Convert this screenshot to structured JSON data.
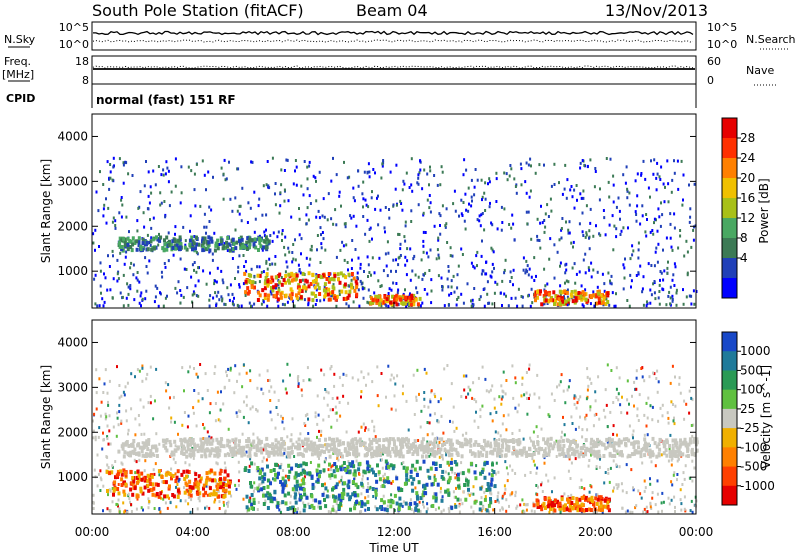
{
  "header": {
    "station": "South Pole Station (fitACF)",
    "beam": "Beam 04",
    "date": "13/Nov/2013"
  },
  "top_panels": {
    "nsky_label": "N.Sky",
    "nsky_ticks": [
      "10^5",
      "10^0"
    ],
    "nsearch_label": "N.Search",
    "nsearch_ticks": [
      "10^5",
      "10^0"
    ],
    "freq_label_1": "Freq.",
    "freq_label_2": "[MHz]",
    "freq_ticks": [
      "18",
      "8"
    ],
    "nave_label": "Nave",
    "nave_ticks": [
      "60",
      "0"
    ],
    "cpid_label": "CPID",
    "cpid_value": "normal (fast) 151 RF"
  },
  "chart_data": [
    {
      "type": "heatmap",
      "panel": "power",
      "ylabel": "Slant Range [km]",
      "y_ticks": [
        "1000",
        "2000",
        "3000",
        "4000"
      ],
      "ylim": [
        180,
        4500
      ],
      "xlim": [
        0,
        24
      ],
      "colorbar": {
        "label": "Power [dB]",
        "ticks": [
          "4",
          "8",
          "12",
          "16",
          "20",
          "24",
          "28"
        ],
        "colors": [
          "#0000ff",
          "#2040b8",
          "#3c7a55",
          "#49a862",
          "#a8c018",
          "#f0c000",
          "#ff8000",
          "#ff3000",
          "#e60000"
        ]
      },
      "bands": [
        {
          "t0": 1.0,
          "t1": 7.0,
          "r0": 1500,
          "r1": 1800,
          "level": "low"
        },
        {
          "t0": 6.0,
          "t1": 10.5,
          "r0": 400,
          "r1": 1000,
          "level": "high"
        },
        {
          "t0": 11.0,
          "t1": 13.0,
          "r0": 300,
          "r1": 500,
          "level": "high"
        },
        {
          "t0": 17.5,
          "t1": 20.5,
          "r0": 300,
          "r1": 600,
          "level": "high"
        }
      ]
    },
    {
      "type": "heatmap",
      "panel": "velocity",
      "ylabel": "Slant Range [km]",
      "y_ticks": [
        "1000",
        "2000",
        "3000",
        "4000"
      ],
      "ylim": [
        180,
        4500
      ],
      "xlim": [
        0,
        24
      ],
      "colorbar": {
        "label": "Velocity [m s^-1]",
        "ticks": [
          "1000",
          "500",
          "100",
          "25",
          "-25",
          "-100",
          "-500",
          "-1000"
        ],
        "colors": [
          "#1848c8",
          "#1f7a9a",
          "#2a9a55",
          "#60c040",
          "#c8c8c0",
          "#f0b000",
          "#ff8000",
          "#ff4000",
          "#e60000"
        ]
      },
      "bands": [
        {
          "t0": 1.0,
          "t1": 24.0,
          "r0": 1500,
          "r1": 1900,
          "level": "ground"
        },
        {
          "t0": 0.5,
          "t1": 5.5,
          "r0": 600,
          "r1": 1200,
          "level": "negative"
        },
        {
          "t0": 6.0,
          "t1": 16.0,
          "r0": 300,
          "r1": 1400,
          "level": "positive"
        },
        {
          "t0": 17.5,
          "t1": 20.5,
          "r0": 300,
          "r1": 600,
          "level": "negative"
        }
      ]
    }
  ],
  "x_axis": {
    "label": "Time UT",
    "ticks": [
      "00:00",
      "04:00",
      "08:00",
      "12:00",
      "16:00",
      "20:00",
      "00:00"
    ]
  }
}
